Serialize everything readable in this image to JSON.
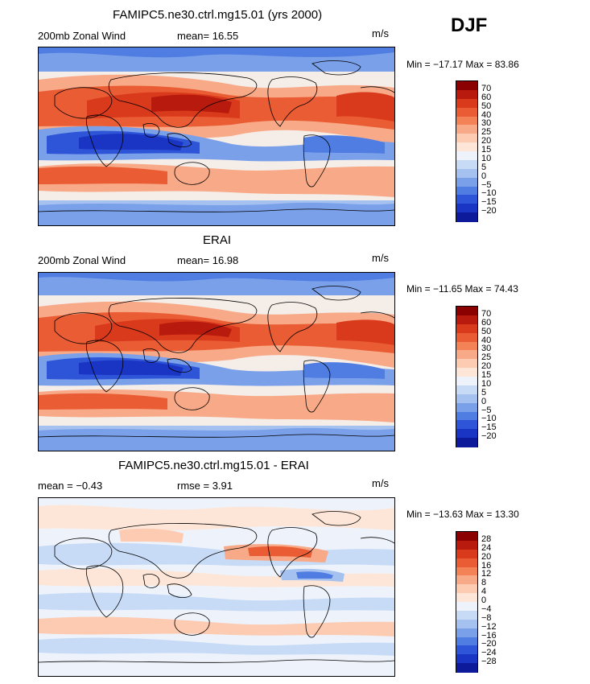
{
  "season": "DJF",
  "units": "m/s",
  "panels": [
    {
      "id": "model",
      "title": "FAMIPC5.ne30.ctrl.mg15.01 (yrs 2000)",
      "left_text": "200mb Zonal Wind",
      "stat_text": "mean=  16.55",
      "minmax": "Min = −17.17 Max =  83.86",
      "levels": [
        "70",
        "60",
        "50",
        "40",
        "30",
        "25",
        "20",
        "15",
        "10",
        "5",
        "0",
        "−5",
        "−10",
        "−15",
        "−20"
      ],
      "colors": [
        "#8b0000",
        "#b81b0d",
        "#d93a1c",
        "#ea5c33",
        "#f38357",
        "#f8a987",
        "#fccbb1",
        "#fde6d7",
        "#eef3fb",
        "#c8dbf6",
        "#a4c1f0",
        "#7aa0ea",
        "#4f7de2",
        "#2e55d8",
        "#1a35c4",
        "#0d1a9a"
      ]
    },
    {
      "id": "obs",
      "title": "ERAI",
      "left_text": "200mb Zonal Wind",
      "stat_text": "mean=  16.98",
      "minmax": "Min = −11.65 Max =  74.43",
      "levels": [
        "70",
        "60",
        "50",
        "40",
        "30",
        "25",
        "20",
        "15",
        "10",
        "5",
        "0",
        "−5",
        "−10",
        "−15",
        "−20"
      ],
      "colors": [
        "#8b0000",
        "#b81b0d",
        "#d93a1c",
        "#ea5c33",
        "#f38357",
        "#f8a987",
        "#fccbb1",
        "#fde6d7",
        "#eef3fb",
        "#c8dbf6",
        "#a4c1f0",
        "#7aa0ea",
        "#4f7de2",
        "#2e55d8",
        "#1a35c4",
        "#0d1a9a"
      ]
    },
    {
      "id": "diff",
      "title": "FAMIPC5.ne30.ctrl.mg15.01 - ERAI",
      "left_text": "mean =  −0.43",
      "stat_text": "rmse =   3.91",
      "minmax": "Min = −13.63 Max =  13.30",
      "levels": [
        "28",
        "24",
        "20",
        "16",
        "12",
        "8",
        "4",
        "0",
        "−4",
        "−8",
        "−12",
        "−16",
        "−20",
        "−24",
        "−28"
      ],
      "colors": [
        "#8b0000",
        "#b81b0d",
        "#d93a1c",
        "#ea5c33",
        "#f38357",
        "#f8a987",
        "#fccbb1",
        "#fde6d7",
        "#eef3fb",
        "#c8dbf6",
        "#a4c1f0",
        "#7aa0ea",
        "#4f7de2",
        "#2e55d8",
        "#1a35c4",
        "#0d1a9a"
      ]
    }
  ]
}
